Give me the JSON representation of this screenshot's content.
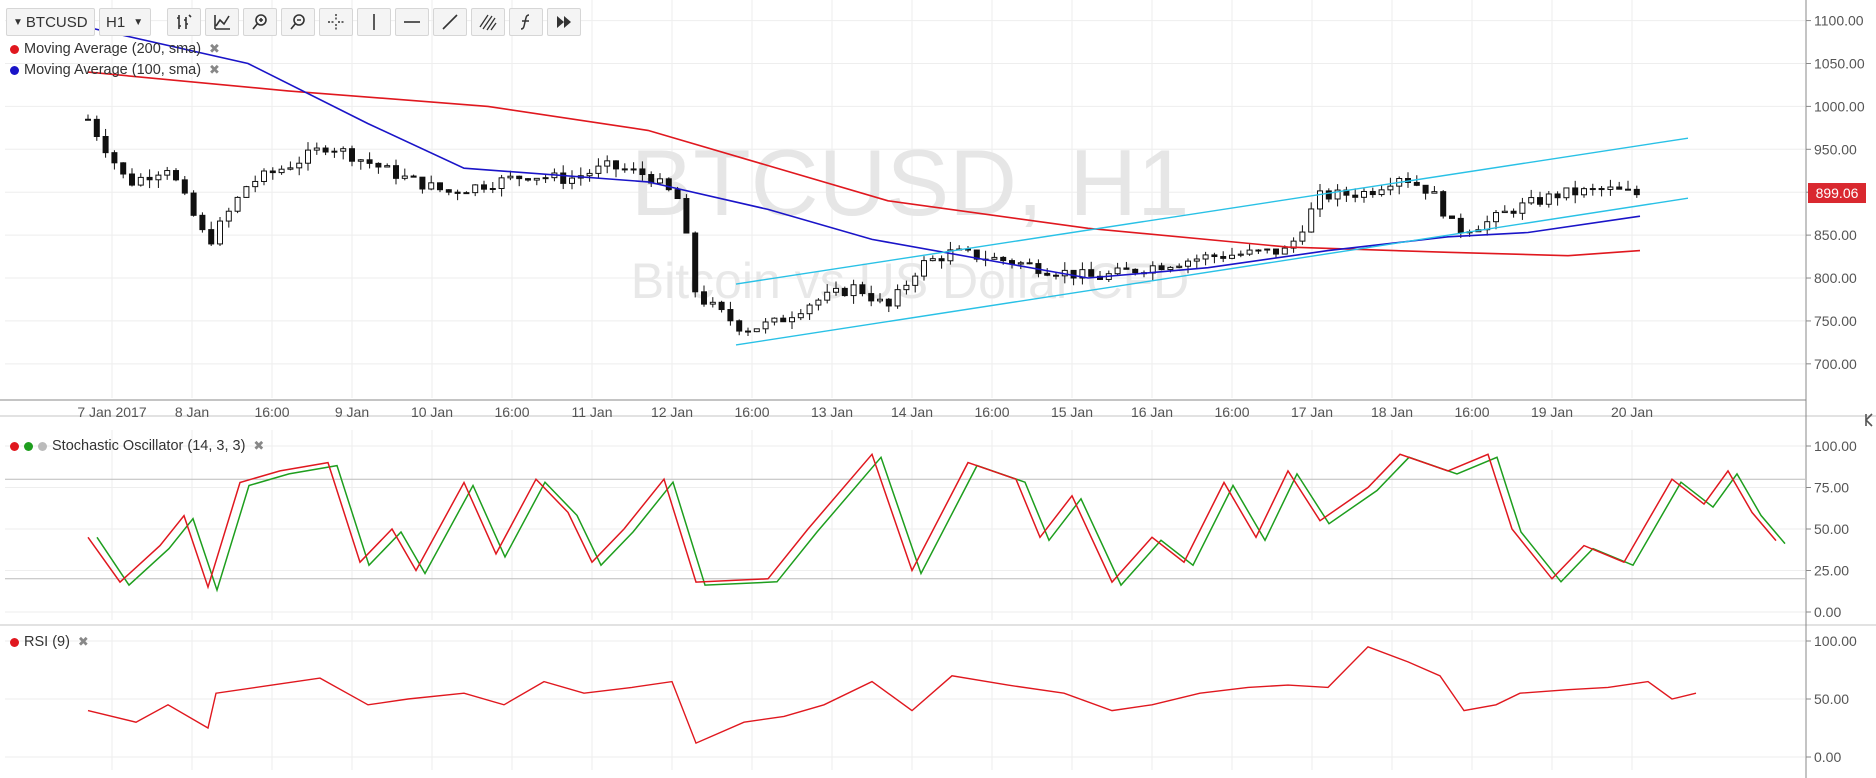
{
  "toolbar": {
    "symbol": "BTCUSD",
    "interval": "H1",
    "tools": [
      "chart-type-icon",
      "indicator-icon",
      "zoom-in-icon",
      "zoom-out-icon",
      "crosshair-icon",
      "vertical-line-icon",
      "horizontal-line-icon",
      "trend-line-icon",
      "fibonacci-icon",
      "formula-icon",
      "forward-icon"
    ]
  },
  "watermark": {
    "title": "BTCUSD, H1",
    "subtitle": "Bitcoin vs US Dollar CFD"
  },
  "legend": {
    "ma200": {
      "label": "Moving Average (200, sma)",
      "color": "#e0181f"
    },
    "ma100": {
      "label": "Moving Average (100, sma)",
      "color": "#1a14c8"
    },
    "stoch": {
      "label": "Stochastic Oscillator (14, 3, 3)",
      "colors": [
        "#e0181f",
        "#1e9e1e",
        "#bbbbbb"
      ]
    },
    "rsi": {
      "label": "RSI (9)",
      "color": "#e0181f"
    }
  },
  "close_symbol": "✖",
  "price_marker": {
    "value": "899.06",
    "color": "#d9282f"
  },
  "colors": {
    "candle": "#111111",
    "channel": "#29c1e6",
    "grid": "#eeeeee",
    "axis": "#888888"
  },
  "chart_data": {
    "type": "candlestick",
    "symbol": "BTCUSD",
    "timeframe": "H1",
    "x_tick_labels": [
      "7 Jan 2017",
      "8 Jan",
      "16:00",
      "9 Jan",
      "10 Jan",
      "16:00",
      "11 Jan",
      "12 Jan",
      "16:00",
      "13 Jan",
      "14 Jan",
      "16:00",
      "15 Jan",
      "16 Jan",
      "16:00",
      "17 Jan",
      "18 Jan",
      "16:00",
      "19 Jan",
      "20 Jan"
    ],
    "price_panel": {
      "y_ticks": [
        "700.00",
        "750.00",
        "800.00",
        "850.00",
        "900.00",
        "950.00",
        "1000.00",
        "1050.00",
        "1100.00"
      ],
      "ylim": [
        680,
        1110
      ],
      "price_path": [
        {
          "t": 0,
          "p": 985
        },
        {
          "t": 0.5,
          "p": 910
        },
        {
          "t": 1,
          "p": 930
        },
        {
          "t": 1.5,
          "p": 840
        },
        {
          "t": 2,
          "p": 910
        },
        {
          "t": 2.6,
          "p": 935
        },
        {
          "t": 3,
          "p": 955
        },
        {
          "t": 3.5,
          "p": 935
        },
        {
          "t": 4,
          "p": 915
        },
        {
          "t": 4.5,
          "p": 900
        },
        {
          "t": 5,
          "p": 910
        },
        {
          "t": 5.5,
          "p": 920
        },
        {
          "t": 6,
          "p": 915
        },
        {
          "t": 6.5,
          "p": 930
        },
        {
          "t": 7,
          "p": 920
        },
        {
          "t": 7.4,
          "p": 890
        },
        {
          "t": 7.6,
          "p": 780
        },
        {
          "t": 8.2,
          "p": 740
        },
        {
          "t": 8.6,
          "p": 748
        },
        {
          "t": 9,
          "p": 770
        },
        {
          "t": 9.6,
          "p": 790
        },
        {
          "t": 10,
          "p": 765
        },
        {
          "t": 10.4,
          "p": 815
        },
        {
          "t": 10.8,
          "p": 830
        },
        {
          "t": 11.5,
          "p": 820
        },
        {
          "t": 12,
          "p": 810
        },
        {
          "t": 12.6,
          "p": 800
        },
        {
          "t": 13.2,
          "p": 812
        },
        {
          "t": 14,
          "p": 825
        },
        {
          "t": 15,
          "p": 832
        },
        {
          "t": 15.4,
          "p": 895
        },
        {
          "t": 16,
          "p": 900
        },
        {
          "t": 16.4,
          "p": 920
        },
        {
          "t": 16.8,
          "p": 900
        },
        {
          "t": 17.1,
          "p": 855
        },
        {
          "t": 17.5,
          "p": 865
        },
        {
          "t": 17.8,
          "p": 880
        },
        {
          "t": 18.4,
          "p": 898
        },
        {
          "t": 19,
          "p": 903
        },
        {
          "t": 19.4,
          "p": 897
        }
      ],
      "ma200": [
        {
          "t": 0,
          "p": 1040
        },
        {
          "t": 2.5,
          "p": 1018
        },
        {
          "t": 5,
          "p": 1000
        },
        {
          "t": 7,
          "p": 972
        },
        {
          "t": 10,
          "p": 890
        },
        {
          "t": 12.5,
          "p": 858
        },
        {
          "t": 15,
          "p": 836
        },
        {
          "t": 17,
          "p": 830
        },
        {
          "t": 18.5,
          "p": 826
        },
        {
          "t": 19.4,
          "p": 832
        }
      ],
      "ma100": [
        {
          "t": 0,
          "p": 1092
        },
        {
          "t": 2,
          "p": 1050
        },
        {
          "t": 3.5,
          "p": 980
        },
        {
          "t": 4.7,
          "p": 928
        },
        {
          "t": 7,
          "p": 912
        },
        {
          "t": 8.5,
          "p": 880
        },
        {
          "t": 9.8,
          "p": 845
        },
        {
          "t": 11,
          "p": 825
        },
        {
          "t": 12.5,
          "p": 800
        },
        {
          "t": 14,
          "p": 812
        },
        {
          "t": 15.5,
          "p": 832
        },
        {
          "t": 17,
          "p": 848
        },
        {
          "t": 18,
          "p": 853
        },
        {
          "t": 19.4,
          "p": 872
        }
      ],
      "channel_lines": [
        {
          "from": {
            "t": 8.1,
            "p": 793
          },
          "to": {
            "t": 20.0,
            "p": 963
          }
        },
        {
          "from": {
            "t": 8.1,
            "p": 722
          },
          "to": {
            "t": 20.0,
            "p": 893
          }
        }
      ],
      "last_price": 899.06
    },
    "stochastic_panel": {
      "y_ticks": [
        "0.00",
        "25.00",
        "50.00",
        "75.00",
        "100.00"
      ],
      "ylim": [
        0,
        100
      ],
      "levels": [
        20,
        80
      ],
      "k_line": [
        {
          "t": 0,
          "v": 45
        },
        {
          "t": 0.4,
          "v": 18
        },
        {
          "t": 0.9,
          "v": 40
        },
        {
          "t": 1.2,
          "v": 58
        },
        {
          "t": 1.5,
          "v": 15
        },
        {
          "t": 1.9,
          "v": 78
        },
        {
          "t": 2.4,
          "v": 85
        },
        {
          "t": 3,
          "v": 90
        },
        {
          "t": 3.4,
          "v": 30
        },
        {
          "t": 3.8,
          "v": 50
        },
        {
          "t": 4.1,
          "v": 25
        },
        {
          "t": 4.7,
          "v": 78
        },
        {
          "t": 5.1,
          "v": 35
        },
        {
          "t": 5.6,
          "v": 80
        },
        {
          "t": 6,
          "v": 60
        },
        {
          "t": 6.3,
          "v": 30
        },
        {
          "t": 6.7,
          "v": 50
        },
        {
          "t": 7.2,
          "v": 80
        },
        {
          "t": 7.6,
          "v": 18
        },
        {
          "t": 8.5,
          "v": 20
        },
        {
          "t": 9,
          "v": 50
        },
        {
          "t": 9.8,
          "v": 95
        },
        {
          "t": 10.3,
          "v": 25
        },
        {
          "t": 11,
          "v": 90
        },
        {
          "t": 11.6,
          "v": 80
        },
        {
          "t": 11.9,
          "v": 45
        },
        {
          "t": 12.3,
          "v": 70
        },
        {
          "t": 12.8,
          "v": 18
        },
        {
          "t": 13.3,
          "v": 45
        },
        {
          "t": 13.7,
          "v": 30
        },
        {
          "t": 14.2,
          "v": 78
        },
        {
          "t": 14.6,
          "v": 45
        },
        {
          "t": 15,
          "v": 85
        },
        {
          "t": 15.4,
          "v": 55
        },
        {
          "t": 16,
          "v": 75
        },
        {
          "t": 16.4,
          "v": 95
        },
        {
          "t": 17,
          "v": 85
        },
        {
          "t": 17.5,
          "v": 95
        },
        {
          "t": 17.8,
          "v": 50
        },
        {
          "t": 18.3,
          "v": 20
        },
        {
          "t": 18.7,
          "v": 40
        },
        {
          "t": 19.2,
          "v": 30
        },
        {
          "t": 19.8,
          "v": 80
        },
        {
          "t": 20.2,
          "v": 65
        },
        {
          "t": 20.5,
          "v": 85
        },
        {
          "t": 20.8,
          "v": 60
        },
        {
          "t": 21.1,
          "v": 43
        }
      ]
    },
    "rsi_panel": {
      "y_ticks": [
        "0.00",
        "50.00",
        "100.00"
      ],
      "ylim": [
        0,
        100
      ],
      "line": [
        {
          "t": 0,
          "v": 40
        },
        {
          "t": 0.6,
          "v": 30
        },
        {
          "t": 1,
          "v": 45
        },
        {
          "t": 1.5,
          "v": 25
        },
        {
          "t": 1.6,
          "v": 55
        },
        {
          "t": 2.3,
          "v": 62
        },
        {
          "t": 2.9,
          "v": 68
        },
        {
          "t": 3.5,
          "v": 45
        },
        {
          "t": 4,
          "v": 50
        },
        {
          "t": 4.7,
          "v": 55
        },
        {
          "t": 5.2,
          "v": 45
        },
        {
          "t": 5.7,
          "v": 65
        },
        {
          "t": 6.2,
          "v": 55
        },
        {
          "t": 6.8,
          "v": 60
        },
        {
          "t": 7.3,
          "v": 65
        },
        {
          "t": 7.6,
          "v": 12
        },
        {
          "t": 8.2,
          "v": 30
        },
        {
          "t": 8.7,
          "v": 35
        },
        {
          "t": 9.2,
          "v": 45
        },
        {
          "t": 9.8,
          "v": 65
        },
        {
          "t": 10.3,
          "v": 40
        },
        {
          "t": 10.8,
          "v": 70
        },
        {
          "t": 11.5,
          "v": 62
        },
        {
          "t": 12.2,
          "v": 55
        },
        {
          "t": 12.8,
          "v": 40
        },
        {
          "t": 13.3,
          "v": 45
        },
        {
          "t": 13.9,
          "v": 55
        },
        {
          "t": 14.5,
          "v": 60
        },
        {
          "t": 15,
          "v": 62
        },
        {
          "t": 15.5,
          "v": 60
        },
        {
          "t": 16,
          "v": 95
        },
        {
          "t": 16.5,
          "v": 82
        },
        {
          "t": 16.9,
          "v": 70
        },
        {
          "t": 17.2,
          "v": 40
        },
        {
          "t": 17.6,
          "v": 45
        },
        {
          "t": 17.9,
          "v": 55
        },
        {
          "t": 18.5,
          "v": 58
        },
        {
          "t": 19,
          "v": 60
        },
        {
          "t": 19.5,
          "v": 65
        },
        {
          "t": 19.8,
          "v": 50
        },
        {
          "t": 20.1,
          "v": 55
        }
      ]
    }
  }
}
